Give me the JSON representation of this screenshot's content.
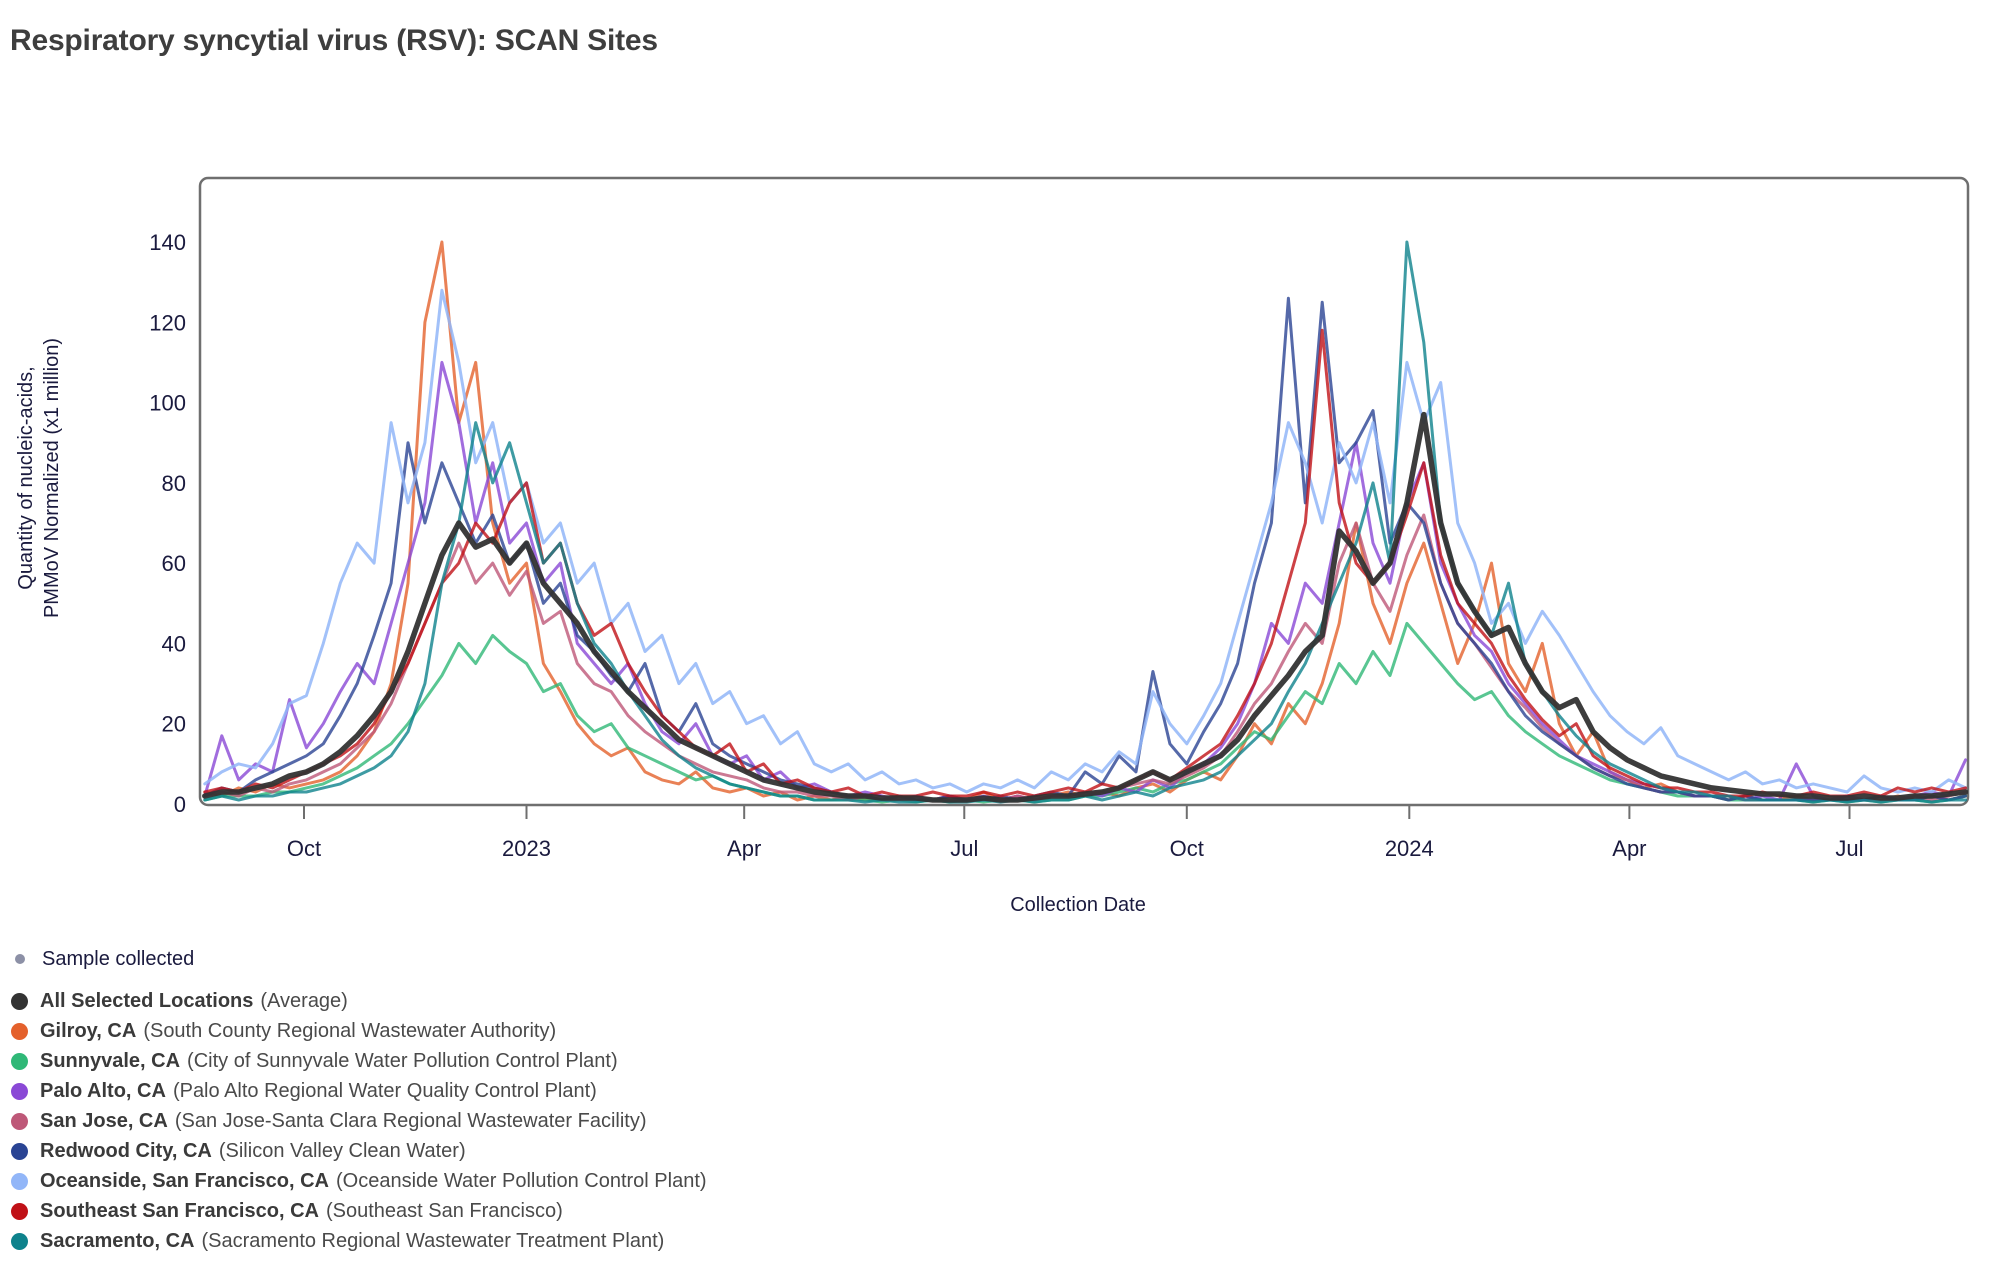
{
  "title": "Respiratory syncytial virus (RSV): SCAN Sites",
  "colors": {
    "axis_text": "#1A1A3E",
    "title_text": "#3E3E3E",
    "plot_border": "#6F6F6F",
    "sample_dot": "#8C90A6"
  },
  "legend": {
    "sample_label": "Sample collected",
    "items": [
      {
        "name": "All Selected Locations",
        "desc": "(Average)",
        "color": "#333333"
      },
      {
        "name": "Gilroy, CA",
        "desc": "(South County Regional Wastewater Authority)",
        "color": "#E4612C"
      },
      {
        "name": "Sunnyvale, CA",
        "desc": "(City of Sunnyvale Water Pollution Control Plant)",
        "color": "#2FB877"
      },
      {
        "name": "Palo Alto, CA",
        "desc": "(Palo Alto Regional Water Quality Control Plant)",
        "color": "#8A49D6"
      },
      {
        "name": "San Jose, CA",
        "desc": "(San Jose-Santa Clara Regional Wastewater Facility)",
        "color": "#BE5878"
      },
      {
        "name": "Redwood City, CA",
        "desc": "(Silicon Valley Clean Water)",
        "color": "#2A4494"
      },
      {
        "name": "Oceanside, San Francisco, CA",
        "desc": "(Oceanside Water Pollution Control Plant)",
        "color": "#92B6F8"
      },
      {
        "name": "Southeast San Francisco, CA",
        "desc": "(Southeast San Francisco)",
        "color": "#C01117"
      },
      {
        "name": "Sacramento, CA",
        "desc": "(Sacramento Regional Wastewater Treatment Plant)",
        "color": "#0E828C"
      }
    ]
  },
  "chart_data": {
    "type": "line",
    "title": "Respiratory syncytial virus (RSV): SCAN Sites",
    "xlabel": "Collection Date",
    "ylabel_line1": "Quantity of nucleic-acids,",
    "ylabel_line2": "PMMoV Normalized (x1 million)",
    "ylim": [
      0,
      140
    ],
    "y_ticks": [
      0,
      20,
      40,
      60,
      80,
      100,
      120,
      140
    ],
    "x_range": [
      "2022-08-19",
      "2024-08-19"
    ],
    "x_ticks": [
      {
        "label": "Oct",
        "date": "2022-10-01"
      },
      {
        "label": "2023",
        "date": "2023-01-01"
      },
      {
        "label": "Apr",
        "date": "2023-04-01"
      },
      {
        "label": "Jul",
        "date": "2023-07-01"
      },
      {
        "label": "Oct",
        "date": "2023-10-01"
      },
      {
        "label": "2024",
        "date": "2024-01-01"
      },
      {
        "label": "Apr",
        "date": "2024-04-01"
      },
      {
        "label": "Jul",
        "date": "2024-07-01"
      }
    ],
    "x": [
      "2022-08-21",
      "2022-08-28",
      "2022-09-04",
      "2022-09-11",
      "2022-09-18",
      "2022-09-25",
      "2022-10-02",
      "2022-10-09",
      "2022-10-16",
      "2022-10-23",
      "2022-10-30",
      "2022-11-06",
      "2022-11-13",
      "2022-11-20",
      "2022-11-27",
      "2022-12-04",
      "2022-12-11",
      "2022-12-18",
      "2022-12-25",
      "2023-01-01",
      "2023-01-08",
      "2023-01-15",
      "2023-01-22",
      "2023-01-29",
      "2023-02-05",
      "2023-02-12",
      "2023-02-19",
      "2023-02-26",
      "2023-03-05",
      "2023-03-12",
      "2023-03-19",
      "2023-03-26",
      "2023-04-02",
      "2023-04-09",
      "2023-04-16",
      "2023-04-23",
      "2023-04-30",
      "2023-05-07",
      "2023-05-14",
      "2023-05-21",
      "2023-05-28",
      "2023-06-04",
      "2023-06-11",
      "2023-06-18",
      "2023-06-25",
      "2023-07-02",
      "2023-07-09",
      "2023-07-16",
      "2023-07-23",
      "2023-07-30",
      "2023-08-06",
      "2023-08-13",
      "2023-08-20",
      "2023-08-27",
      "2023-09-03",
      "2023-09-10",
      "2023-09-17",
      "2023-09-24",
      "2023-10-01",
      "2023-10-08",
      "2023-10-15",
      "2023-10-22",
      "2023-10-29",
      "2023-11-05",
      "2023-11-12",
      "2023-11-19",
      "2023-11-26",
      "2023-12-03",
      "2023-12-10",
      "2023-12-17",
      "2023-12-24",
      "2023-12-31",
      "2024-01-07",
      "2024-01-14",
      "2024-01-21",
      "2024-01-28",
      "2024-02-04",
      "2024-02-11",
      "2024-02-18",
      "2024-02-25",
      "2024-03-03",
      "2024-03-10",
      "2024-03-17",
      "2024-03-24",
      "2024-03-31",
      "2024-04-07",
      "2024-04-14",
      "2024-04-21",
      "2024-04-28",
      "2024-05-05",
      "2024-05-12",
      "2024-05-19",
      "2024-05-26",
      "2024-06-02",
      "2024-06-09",
      "2024-06-16",
      "2024-06-23",
      "2024-06-30",
      "2024-07-07",
      "2024-07-14",
      "2024-07-21",
      "2024-07-28",
      "2024-08-04",
      "2024-08-11",
      "2024-08-18"
    ],
    "series": [
      {
        "name": "All Selected Locations (Average)",
        "color": "#333333",
        "width": 5.5,
        "opacity": 0.95,
        "values": [
          2,
          3,
          3,
          4,
          5,
          7,
          8,
          10,
          13,
          17,
          22,
          28,
          38,
          50,
          62,
          70,
          64,
          66,
          60,
          65,
          55,
          50,
          45,
          38,
          33,
          28,
          24,
          20,
          16,
          14,
          12,
          10,
          8,
          6,
          5,
          4,
          3,
          2.5,
          2,
          2,
          1.5,
          1.5,
          1.5,
          1,
          1,
          1,
          1.5,
          1,
          1,
          1.5,
          2,
          2,
          2.5,
          3,
          4,
          6,
          8,
          6,
          8,
          10,
          12,
          16,
          22,
          27,
          32,
          38,
          42,
          68,
          63,
          55,
          60,
          75,
          97,
          70,
          55,
          48,
          42,
          44,
          35,
          28,
          24,
          26,
          18,
          14,
          11,
          9,
          7,
          6,
          5,
          4,
          3.5,
          3,
          2.5,
          2.5,
          2,
          2,
          1.5,
          1.5,
          2,
          1.5,
          1.5,
          2,
          2,
          2.5,
          3
        ]
      },
      {
        "name": "Gilroy, CA",
        "color": "#E4612C",
        "width": 3,
        "opacity": 0.8,
        "values": [
          3,
          2,
          4,
          3,
          5,
          4,
          5,
          6,
          8,
          12,
          18,
          30,
          55,
          120,
          140,
          95,
          110,
          70,
          55,
          60,
          35,
          28,
          20,
          15,
          12,
          14,
          8,
          6,
          5,
          8,
          4,
          3,
          4,
          2,
          3,
          1,
          2,
          1,
          2,
          1,
          1,
          2,
          1,
          1,
          2,
          1,
          3,
          1,
          2,
          1,
          2,
          3,
          2,
          3,
          2,
          4,
          5,
          3,
          6,
          8,
          6,
          12,
          20,
          15,
          25,
          20,
          30,
          45,
          70,
          50,
          40,
          55,
          65,
          50,
          35,
          45,
          60,
          35,
          28,
          40,
          20,
          12,
          18,
          8,
          6,
          4,
          5,
          3,
          2,
          2,
          1,
          2,
          1,
          1,
          2,
          1,
          1,
          2,
          1,
          1,
          2,
          1,
          2,
          1,
          2
        ]
      },
      {
        "name": "Sunnyvale, CA",
        "color": "#2FB877",
        "width": 3,
        "opacity": 0.8,
        "values": [
          1,
          2,
          2,
          2,
          3,
          3,
          4,
          5,
          7,
          9,
          12,
          15,
          20,
          26,
          32,
          40,
          35,
          42,
          38,
          35,
          28,
          30,
          22,
          18,
          20,
          14,
          12,
          10,
          8,
          6,
          7,
          5,
          4,
          3,
          2,
          2,
          1,
          1,
          1,
          1,
          0.5,
          1,
          0.5,
          1,
          0.5,
          1,
          0.5,
          1,
          1,
          0.5,
          1,
          1,
          2,
          2,
          3,
          4,
          3,
          5,
          6,
          8,
          10,
          14,
          18,
          16,
          22,
          28,
          25,
          35,
          30,
          38,
          32,
          45,
          40,
          35,
          30,
          26,
          28,
          22,
          18,
          15,
          12,
          10,
          8,
          6,
          5,
          4,
          3,
          2,
          2,
          2,
          1,
          1,
          1,
          1,
          1,
          0.5,
          1,
          0.5,
          1,
          0.5,
          1,
          1,
          0.5,
          1,
          2
        ]
      },
      {
        "name": "Palo Alto, CA",
        "color": "#8A49D6",
        "width": 3,
        "opacity": 0.8,
        "values": [
          2,
          17,
          6,
          10,
          8,
          26,
          14,
          20,
          28,
          35,
          30,
          45,
          60,
          75,
          110,
          95,
          70,
          85,
          65,
          70,
          55,
          60,
          40,
          35,
          30,
          35,
          25,
          18,
          15,
          20,
          12,
          10,
          12,
          6,
          8,
          4,
          5,
          3,
          2,
          3,
          2,
          1,
          2,
          1,
          2,
          1,
          2,
          1,
          2,
          1,
          2,
          2,
          3,
          2,
          4,
          3,
          6,
          4,
          8,
          10,
          14,
          20,
          30,
          45,
          40,
          55,
          50,
          70,
          90,
          65,
          55,
          75,
          85,
          60,
          50,
          42,
          38,
          30,
          25,
          20,
          16,
          12,
          10,
          8,
          6,
          5,
          4,
          3,
          2,
          2,
          2,
          1,
          2,
          1,
          10,
          2,
          1,
          2,
          1,
          2,
          1,
          2,
          3,
          2,
          11
        ]
      },
      {
        "name": "San Jose, CA",
        "color": "#BE5878",
        "width": 3,
        "opacity": 0.8,
        "values": [
          2,
          3,
          2,
          4,
          3,
          5,
          6,
          8,
          10,
          14,
          18,
          25,
          35,
          45,
          55,
          65,
          55,
          60,
          52,
          58,
          45,
          48,
          35,
          30,
          28,
          22,
          18,
          15,
          12,
          10,
          8,
          7,
          6,
          4,
          3,
          3,
          2,
          2,
          1,
          2,
          1,
          1,
          1,
          1,
          1,
          1,
          1,
          1,
          2,
          1,
          2,
          2,
          3,
          3,
          4,
          5,
          6,
          5,
          7,
          9,
          12,
          18,
          25,
          30,
          38,
          45,
          40,
          60,
          70,
          55,
          48,
          62,
          72,
          55,
          45,
          40,
          34,
          28,
          24,
          19,
          15,
          12,
          9,
          7,
          6,
          4,
          3,
          3,
          2,
          2,
          2,
          1,
          1,
          1,
          1,
          1,
          1,
          1,
          1,
          1,
          1,
          2,
          1,
          2,
          3
        ]
      },
      {
        "name": "Redwood City, CA",
        "color": "#2A4494",
        "width": 3,
        "opacity": 0.8,
        "values": [
          2,
          4,
          3,
          6,
          8,
          10,
          12,
          15,
          22,
          30,
          42,
          55,
          90,
          70,
          85,
          75,
          65,
          72,
          60,
          65,
          50,
          55,
          42,
          38,
          32,
          28,
          35,
          22,
          18,
          25,
          15,
          12,
          10,
          8,
          6,
          5,
          4,
          3,
          2,
          2,
          1,
          2,
          1,
          1,
          2,
          1,
          1,
          2,
          1,
          2,
          3,
          2,
          8,
          5,
          12,
          8,
          33,
          15,
          10,
          18,
          25,
          35,
          55,
          70,
          126,
          75,
          125,
          85,
          90,
          98,
          65,
          75,
          70,
          55,
          45,
          40,
          35,
          28,
          22,
          18,
          15,
          12,
          9,
          7,
          5,
          4,
          3,
          3,
          2,
          2,
          1,
          2,
          1,
          1,
          1,
          1,
          1,
          1,
          1,
          2,
          1,
          1,
          2,
          1,
          2
        ]
      },
      {
        "name": "Oceanside, San Francisco, CA",
        "color": "#92B6F8",
        "width": 3,
        "opacity": 0.85,
        "values": [
          5,
          8,
          10,
          9,
          15,
          25,
          27,
          40,
          55,
          65,
          60,
          95,
          75,
          90,
          128,
          110,
          85,
          95,
          75,
          80,
          65,
          70,
          55,
          60,
          45,
          50,
          38,
          42,
          30,
          35,
          25,
          28,
          20,
          22,
          15,
          18,
          10,
          8,
          10,
          6,
          8,
          5,
          6,
          4,
          5,
          3,
          5,
          4,
          6,
          4,
          8,
          6,
          10,
          8,
          13,
          10,
          28,
          20,
          15,
          22,
          30,
          45,
          60,
          75,
          95,
          85,
          70,
          90,
          80,
          95,
          75,
          110,
          95,
          105,
          70,
          60,
          45,
          50,
          40,
          48,
          42,
          35,
          28,
          22,
          18,
          15,
          19,
          12,
          10,
          8,
          6,
          8,
          5,
          6,
          4,
          5,
          4,
          3,
          7,
          4,
          3,
          4,
          3,
          6,
          4
        ]
      },
      {
        "name": "Southeast San Francisco, CA",
        "color": "#C01117",
        "width": 3,
        "opacity": 0.8,
        "values": [
          3,
          4,
          3,
          5,
          4,
          6,
          8,
          10,
          12,
          15,
          20,
          28,
          35,
          45,
          55,
          60,
          70,
          65,
          75,
          80,
          60,
          65,
          50,
          42,
          45,
          35,
          28,
          22,
          18,
          14,
          12,
          15,
          8,
          10,
          5,
          6,
          4,
          3,
          4,
          2,
          3,
          2,
          2,
          3,
          2,
          2,
          3,
          2,
          3,
          2,
          3,
          4,
          3,
          5,
          4,
          6,
          8,
          6,
          9,
          12,
          15,
          22,
          30,
          40,
          55,
          70,
          118,
          75,
          60,
          55,
          60,
          72,
          85,
          62,
          50,
          45,
          40,
          32,
          26,
          21,
          17,
          20,
          12,
          9,
          7,
          5,
          4,
          4,
          3,
          3,
          2,
          2,
          3,
          2,
          2,
          3,
          2,
          2,
          3,
          2,
          4,
          3,
          4,
          3,
          4
        ]
      },
      {
        "name": "Sacramento, CA",
        "color": "#0E828C",
        "width": 3,
        "opacity": 0.8,
        "values": [
          1,
          2,
          1,
          2,
          2,
          3,
          3,
          4,
          5,
          7,
          9,
          12,
          18,
          30,
          55,
          70,
          95,
          80,
          90,
          75,
          60,
          65,
          50,
          40,
          35,
          28,
          22,
          16,
          12,
          9,
          7,
          5,
          4,
          3,
          2,
          2,
          1,
          1,
          1,
          0.5,
          1,
          0.5,
          0.5,
          1,
          0.5,
          0.5,
          1,
          0.5,
          1,
          0.5,
          1,
          1,
          2,
          1,
          2,
          3,
          2,
          4,
          5,
          6,
          8,
          12,
          16,
          20,
          28,
          35,
          45,
          55,
          65,
          80,
          60,
          140,
          115,
          70,
          55,
          48,
          42,
          55,
          35,
          28,
          22,
          17,
          13,
          10,
          8,
          6,
          4,
          3,
          3,
          2,
          2,
          1,
          1,
          1,
          1,
          0.5,
          1,
          0.5,
          1,
          0.5,
          1,
          1,
          0.5,
          1,
          1
        ]
      }
    ]
  }
}
